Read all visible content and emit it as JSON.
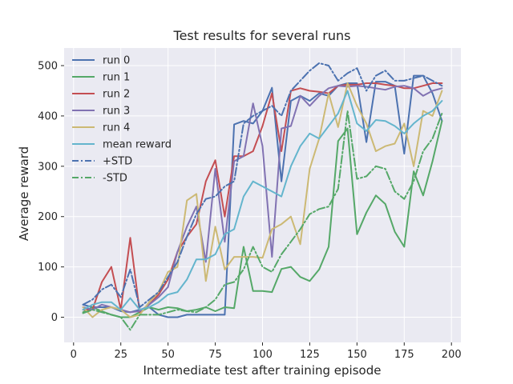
{
  "chart_data": {
    "type": "line",
    "title": "Test results for several runs",
    "xlabel": "Intermediate test after training episode",
    "ylabel": "Average reward",
    "xlim": [
      -5,
      205
    ],
    "ylim": [
      -50,
      535
    ],
    "xticks": [
      0,
      25,
      50,
      75,
      100,
      125,
      150,
      175,
      200
    ],
    "yticks": [
      0,
      100,
      200,
      300,
      400,
      500
    ],
    "grid": true,
    "legend_position": "top-left",
    "x": [
      5,
      10,
      15,
      20,
      25,
      30,
      35,
      40,
      45,
      50,
      55,
      60,
      65,
      70,
      75,
      80,
      85,
      90,
      95,
      100,
      105,
      110,
      115,
      120,
      125,
      130,
      135,
      140,
      145,
      150,
      155,
      160,
      165,
      170,
      175,
      180,
      185,
      190,
      195
    ],
    "series": [
      {
        "name": "run 0",
        "color": "#4c72b0",
        "style": "solid",
        "values": [
          25,
          20,
          20,
          20,
          12,
          10,
          15,
          20,
          5,
          0,
          0,
          5,
          5,
          5,
          5,
          5,
          383,
          390,
          385,
          410,
          456,
          270,
          430,
          440,
          430,
          445,
          440,
          460,
          465,
          465,
          348,
          468,
          468,
          460,
          325,
          480,
          480,
          445,
          390
        ]
      },
      {
        "name": "run 1",
        "color": "#55a868",
        "style": "solid",
        "values": [
          10,
          20,
          12,
          5,
          0,
          0,
          10,
          20,
          15,
          20,
          18,
          12,
          15,
          20,
          12,
          20,
          18,
          140,
          52,
          52,
          50,
          96,
          100,
          80,
          72,
          95,
          140,
          350,
          375,
          165,
          208,
          242,
          225,
          170,
          140,
          290,
          242,
          310,
          390
        ]
      },
      {
        "name": "run 2",
        "color": "#c44e52",
        "style": "solid",
        "values": [
          15,
          15,
          70,
          100,
          15,
          158,
          10,
          25,
          45,
          75,
          130,
          160,
          185,
          270,
          312,
          200,
          320,
          320,
          330,
          380,
          445,
          330,
          450,
          455,
          450,
          448,
          445,
          460,
          462,
          462,
          465,
          465,
          462,
          460,
          455,
          455,
          460,
          465,
          465
        ]
      },
      {
        "name": "run 3",
        "color": "#8172b2",
        "style": "solid",
        "values": [
          20,
          15,
          25,
          20,
          15,
          10,
          12,
          25,
          40,
          60,
          130,
          180,
          220,
          110,
          295,
          150,
          310,
          320,
          425,
          340,
          120,
          375,
          380,
          440,
          420,
          440,
          455,
          460,
          458,
          460,
          458,
          455,
          452,
          458,
          460,
          455,
          440,
          450,
          455
        ]
      },
      {
        "name": "run 4",
        "color": "#ccb974",
        "style": "solid",
        "values": [
          20,
          0,
          15,
          20,
          15,
          0,
          5,
          30,
          50,
          90,
          100,
          232,
          245,
          72,
          180,
          95,
          120,
          120,
          120,
          118,
          175,
          185,
          200,
          145,
          295,
          355,
          445,
          378,
          465,
          420,
          385,
          330,
          340,
          345,
          385,
          300,
          410,
          400,
          450
        ]
      },
      {
        "name": "mean reward",
        "color": "#64b5cd",
        "style": "solid",
        "values": [
          15,
          25,
          30,
          30,
          15,
          38,
          15,
          20,
          30,
          45,
          50,
          75,
          115,
          115,
          125,
          165,
          175,
          240,
          270,
          260,
          250,
          240,
          300,
          340,
          365,
          355,
          380,
          405,
          450,
          385,
          370,
          392,
          390,
          380,
          365,
          385,
          400,
          410,
          430
        ]
      },
      {
        "name": "+STD",
        "color": "#4c72b0",
        "style": "dashdot",
        "values": [
          25,
          35,
          55,
          65,
          40,
          95,
          20,
          35,
          50,
          80,
          110,
          160,
          205,
          235,
          240,
          260,
          270,
          385,
          400,
          410,
          420,
          400,
          450,
          470,
          490,
          505,
          500,
          470,
          485,
          495,
          450,
          480,
          490,
          470,
          470,
          475,
          480,
          470,
          460
        ]
      },
      {
        "name": "-STD",
        "color": "#55a868",
        "style": "dashdot",
        "values": [
          8,
          15,
          10,
          5,
          0,
          -25,
          5,
          5,
          5,
          10,
          15,
          12,
          10,
          20,
          35,
          65,
          70,
          95,
          140,
          100,
          90,
          125,
          150,
          175,
          205,
          215,
          220,
          255,
          410,
          275,
          280,
          300,
          295,
          250,
          235,
          270,
          330,
          355,
          405
        ]
      }
    ]
  }
}
